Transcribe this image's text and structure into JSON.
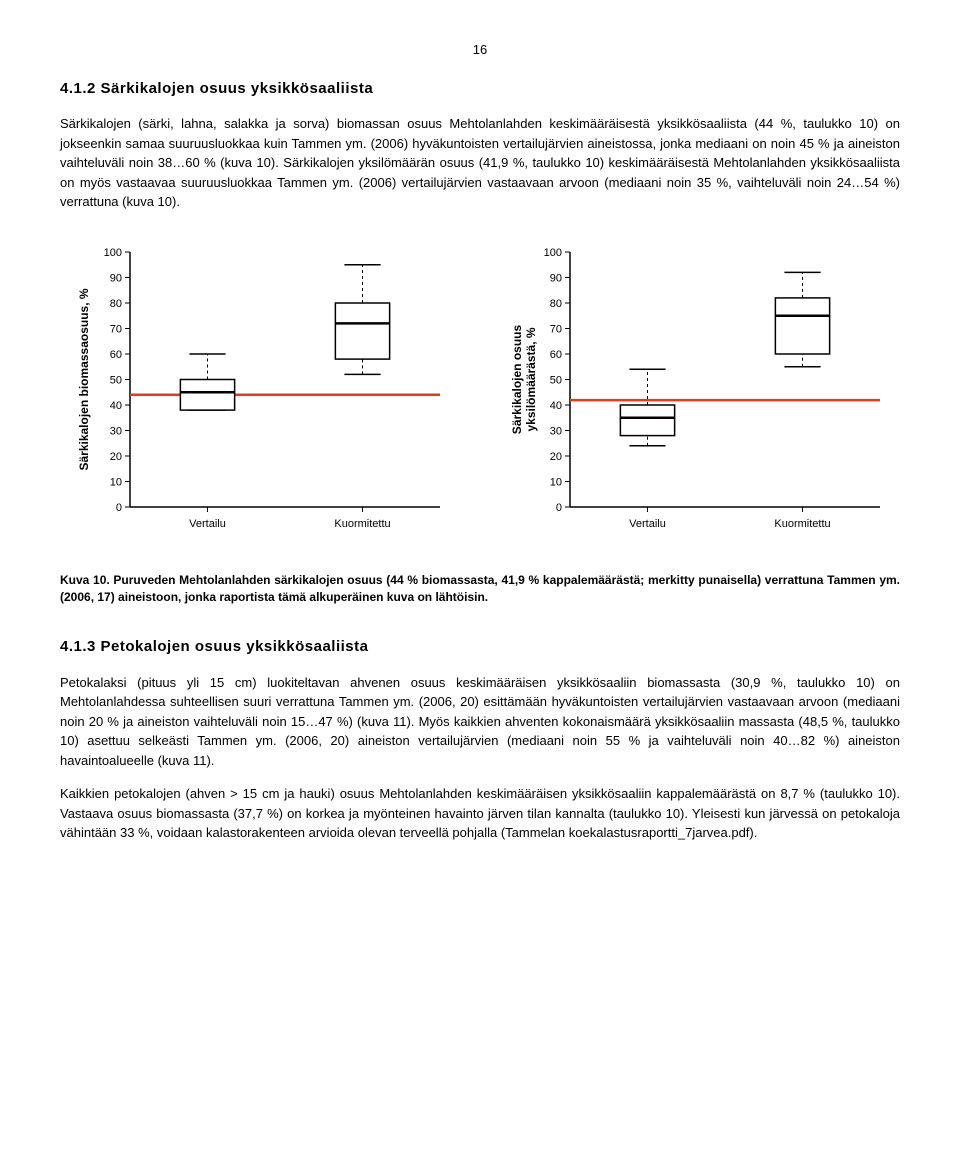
{
  "page_number": "16",
  "heading_412": "4.1.2 Särkikalojen osuus yksikkösaaliista",
  "para_412": "Särkikalojen (särki, lahna, salakka ja sorva) biomassan osuus Mehtolanlahden keskimääräisestä yksikkösaaliista (44 %, taulukko 10) on jokseenkin samaa suuruusluokkaa kuin Tammen ym. (2006) hyväkuntoisten vertailujärvien aineistossa, jonka mediaani on noin 45 % ja aineiston vaihteluväli noin 38…60 % (kuva 10). Särkikalojen yksilömäärän osuus (41,9 %, taulukko 10) keskimääräisestä Mehtolanlahden yksikkösaaliista on myös vastaavaa suuruusluokkaa Tammen ym. (2006) vertailujärvien vastaavaan arvoon (mediaani noin 35 %, vaihteluväli noin 24…54 %) verrattuna (kuva 10).",
  "caption_fig10": "Kuva 10. Puruveden Mehtolanlahden särkikalojen osuus (44 % biomassasta, 41,9 % kappalemäärästä; merkitty punaisella) verrattuna Tammen ym. (2006, 17) aineistoon, jonka raportista tämä alkuperäinen kuva on lähtöisin.",
  "heading_413": "4.1.3 Petokalojen osuus yksikkösaaliista",
  "para_413a": "Petokalaksi (pituus yli 15 cm) luokiteltavan ahvenen osuus keskimääräisen yksikkösaaliin biomassasta (30,9 %, taulukko 10) on Mehtolanlahdessa suhteellisen suuri verrattuna Tammen ym. (2006, 20) esittämään hyväkuntoisten vertailujärvien vastaavaan arvoon (mediaani noin 20 % ja aineiston vaihteluväli noin 15…47 %) (kuva 11). Myös kaikkien ahventen kokonaismäärä yksikkösaaliin massasta (48,5 %, taulukko 10) asettuu selkeästi Tammen ym. (2006, 20) aineiston vertailujärvien (mediaani noin 55 % ja vaihteluväli noin 40…82 %) aineiston havaintoalueelle (kuva 11).",
  "para_413b": "Kaikkien petokalojen (ahven > 15 cm ja hauki) osuus Mehtolanlahden keskimääräisen yksikkösaaliin kappalemäärästä on 8,7 % (taulukko 10). Vastaava osuus biomassasta (37,7 %) on korkea ja myönteinen havainto järven tilan kannalta (taulukko 10). Yleisesti kun järvessä on petokaloja vähintään 33 %, voidaan kalastorakenteen arvioida olevan terveellä pohjalla (Tammelan koekalastusraportti_7jarvea.pdf).",
  "chart_left": {
    "type": "boxplot",
    "ylabel": "Särkikalojen biomassaosuus, %",
    "ylim": [
      0,
      100
    ],
    "ytick_step": 10,
    "categories": [
      "Vertailu",
      "Kuormitettu"
    ],
    "redline_y": 44,
    "redline_color": "#e53a1a",
    "boxes": [
      {
        "q1": 38,
        "median": 45,
        "q3": 50,
        "wmin": 38,
        "wmax": 60,
        "outliers": []
      },
      {
        "q1": 58,
        "median": 72,
        "q3": 80,
        "wmin": 52,
        "wmax": 95,
        "outliers": []
      }
    ],
    "box_width": 0.35
  },
  "chart_right": {
    "type": "boxplot",
    "ylabel": "Särkikalojen osuus\nyksilömäärästä, %",
    "ylim": [
      0,
      100
    ],
    "ytick_step": 10,
    "categories": [
      "Vertailu",
      "Kuormitettu"
    ],
    "redline_y": 41.9,
    "redline_color": "#e53a1a",
    "boxes": [
      {
        "q1": 28,
        "median": 35,
        "q3": 40,
        "wmin": 24,
        "wmax": 54,
        "outliers": []
      },
      {
        "q1": 60,
        "median": 75,
        "q3": 82,
        "wmin": 55,
        "wmax": 92,
        "outliers": []
      }
    ],
    "box_width": 0.35
  }
}
